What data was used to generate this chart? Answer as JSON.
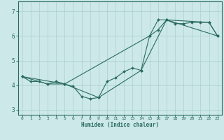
{
  "xlabel": "Humidex (Indice chaleur)",
  "bg_color": "#cce8e8",
  "line_color": "#2a6b63",
  "grid_color": "#aacfcf",
  "xlim": [
    -0.5,
    23.5
  ],
  "ylim": [
    2.8,
    7.4
  ],
  "yticks": [
    3,
    4,
    5,
    6,
    7
  ],
  "xticks": [
    0,
    1,
    2,
    3,
    4,
    5,
    6,
    7,
    8,
    9,
    10,
    11,
    12,
    13,
    14,
    15,
    16,
    17,
    18,
    19,
    20,
    21,
    22,
    23
  ],
  "line1_x": [
    0,
    1,
    2,
    3,
    4,
    5,
    6,
    7,
    8,
    9,
    10,
    11,
    12,
    13,
    14,
    15,
    16,
    17,
    18,
    19,
    20,
    21,
    22,
    23
  ],
  "line1_y": [
    4.35,
    4.15,
    4.15,
    4.05,
    4.15,
    4.05,
    3.95,
    3.55,
    3.45,
    3.5,
    4.15,
    4.3,
    4.55,
    4.7,
    4.6,
    6.0,
    6.25,
    6.65,
    6.5,
    6.5,
    6.55,
    6.55,
    6.55,
    6.0
  ],
  "line2_x": [
    0,
    3,
    5,
    15,
    16,
    17,
    22,
    23
  ],
  "line2_y": [
    4.35,
    4.05,
    4.05,
    6.0,
    6.65,
    6.65,
    6.55,
    6.0
  ],
  "line3_x": [
    0,
    5,
    9,
    14,
    17,
    23
  ],
  "line3_y": [
    4.35,
    4.05,
    3.5,
    4.6,
    6.65,
    6.0
  ]
}
